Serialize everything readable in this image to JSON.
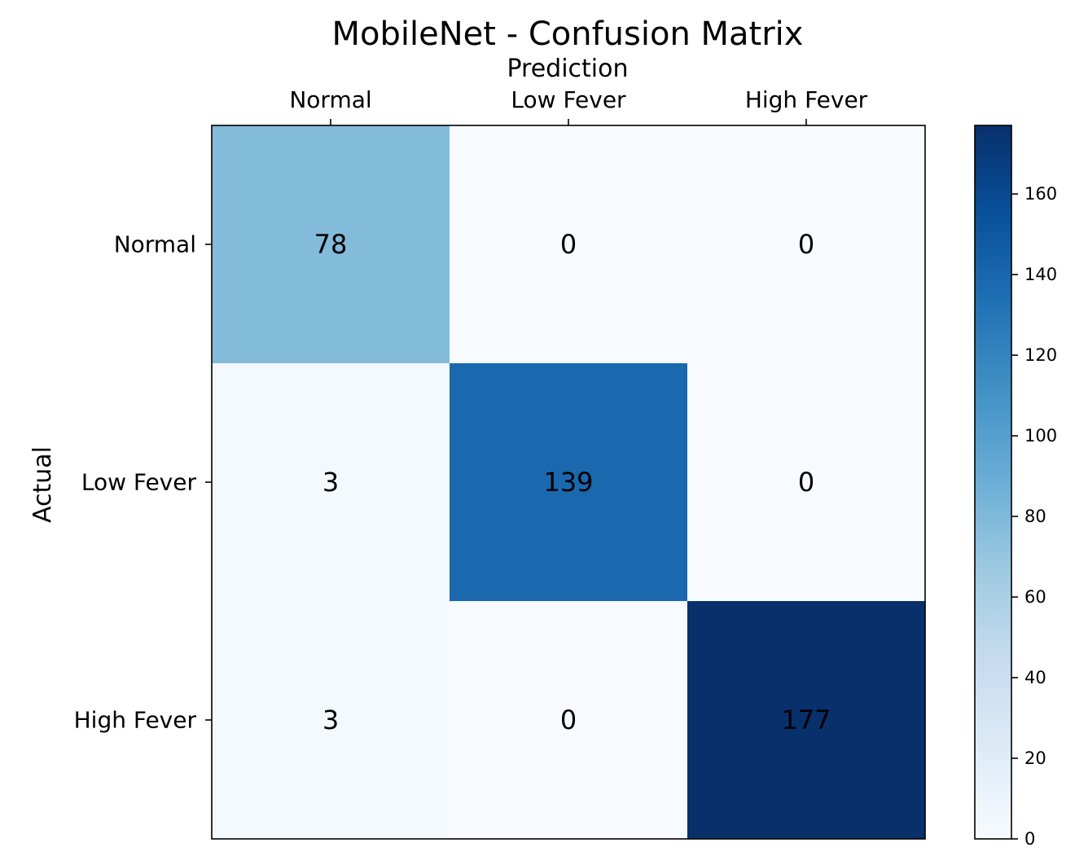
{
  "chart_data": {
    "type": "heatmap",
    "title": "MobileNet - Confusion Matrix",
    "xlabel": "Prediction",
    "ylabel": "Actual",
    "x_categories": [
      "Normal",
      "Low Fever",
      "High Fever"
    ],
    "y_categories": [
      "Normal",
      "Low Fever",
      "High Fever"
    ],
    "values": [
      [
        78,
        0,
        0
      ],
      [
        3,
        139,
        0
      ],
      [
        3,
        0,
        177
      ]
    ],
    "colormap": "Blues",
    "colorbar": {
      "range": [
        0,
        177
      ],
      "ticks": [
        0,
        20,
        40,
        60,
        80,
        100,
        120,
        140,
        160
      ],
      "tick_labels": [
        "0",
        "20",
        "40",
        "60",
        "80",
        "100",
        "120",
        "140",
        "160"
      ]
    },
    "x_tick_position": "top",
    "grid": false
  }
}
